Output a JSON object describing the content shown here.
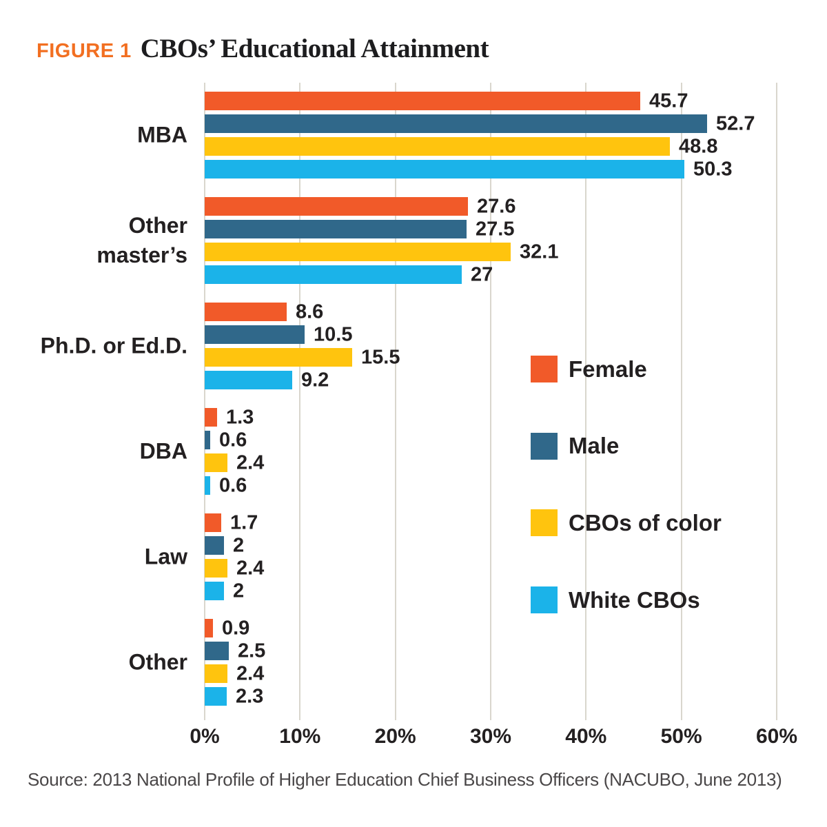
{
  "figure": {
    "kicker": "FIGURE 1",
    "title": "CBOs’ Educational Attainment"
  },
  "source": "Source: 2013 National Profile of Higher Education Chief Business Officers (NACUBO, June 2013)",
  "colors": {
    "kicker_orange": "#F26F21",
    "gridline": "#D9D6CD",
    "text_dark": "#232021",
    "source_gray": "#4a4748",
    "background": "#ffffff"
  },
  "chart_data": {
    "type": "bar",
    "orientation": "horizontal",
    "title": "CBOs’ Educational Attainment",
    "categories": [
      "MBA",
      "Other\nmaster’s",
      "Ph.D. or Ed.D.",
      "DBA",
      "Law",
      "Other"
    ],
    "series": [
      {
        "name": "Female",
        "color": "#F15A29",
        "values": [
          45.7,
          27.6,
          8.6,
          1.3,
          1.7,
          0.9
        ]
      },
      {
        "name": "Male",
        "color": "#30688A",
        "values": [
          52.7,
          27.5,
          10.5,
          0.6,
          2,
          2.5
        ]
      },
      {
        "name": "CBOs of color",
        "color": "#FFC40E",
        "values": [
          48.8,
          32.1,
          15.5,
          2.4,
          2.4,
          2.4
        ]
      },
      {
        "name": "White CBOs",
        "color": "#1BB3E9",
        "values": [
          50.3,
          27,
          9.2,
          0.6,
          2,
          2.3
        ]
      }
    ],
    "x_ticks": [
      "0%",
      "10%",
      "20%",
      "30%",
      "40%",
      "50%",
      "60%"
    ],
    "xlim": [
      0,
      60
    ],
    "xlabel": "",
    "ylabel": "",
    "grid": true,
    "value_labels_shown": true,
    "legend_position": "right-middle"
  }
}
